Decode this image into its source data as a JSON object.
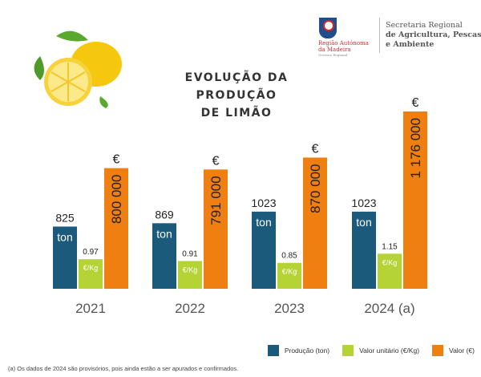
{
  "header": {
    "logo_region": "Região Autónoma da Madeira",
    "logo_gov": "Governo Regional",
    "secretaria_line1": "Secretaria Regional",
    "secretaria_line2": "de Agricultura, Pescas",
    "secretaria_line3": "e Ambiente"
  },
  "chart_data": {
    "type": "bar",
    "title_line1": "EVOLUÇÃO DA PRODUÇÃO",
    "title_line2": "DE LIMÃO",
    "categories": [
      "2021",
      "2022",
      "2023",
      "2024 (a)"
    ],
    "series": [
      {
        "name": "Produção (ton)",
        "color": "#1b5a7a",
        "values": [
          825,
          869,
          1023,
          1023
        ],
        "labels": [
          "825",
          "869",
          "1023",
          "1023"
        ],
        "inner_label": "ton"
      },
      {
        "name": "Valor unitário (€/Kg)",
        "color": "#b5d334",
        "values": [
          0.97,
          0.91,
          0.85,
          1.15
        ],
        "labels": [
          "0.97",
          "0.91",
          "0.85",
          "1.15"
        ],
        "inner_label": "€/Kg"
      },
      {
        "name": "Valor (€)",
        "color": "#f07f12",
        "values": [
          800000,
          791000,
          870000,
          1176000
        ],
        "labels": [
          "800 000",
          "791 000",
          "870 000",
          "1 176 000"
        ],
        "top_label": "€"
      }
    ],
    "legend": "bottom-right",
    "grid": false
  },
  "footnote": "(a) Os dados de 2024 são provisórios, pois ainda estão a ser apurados e confirmados."
}
